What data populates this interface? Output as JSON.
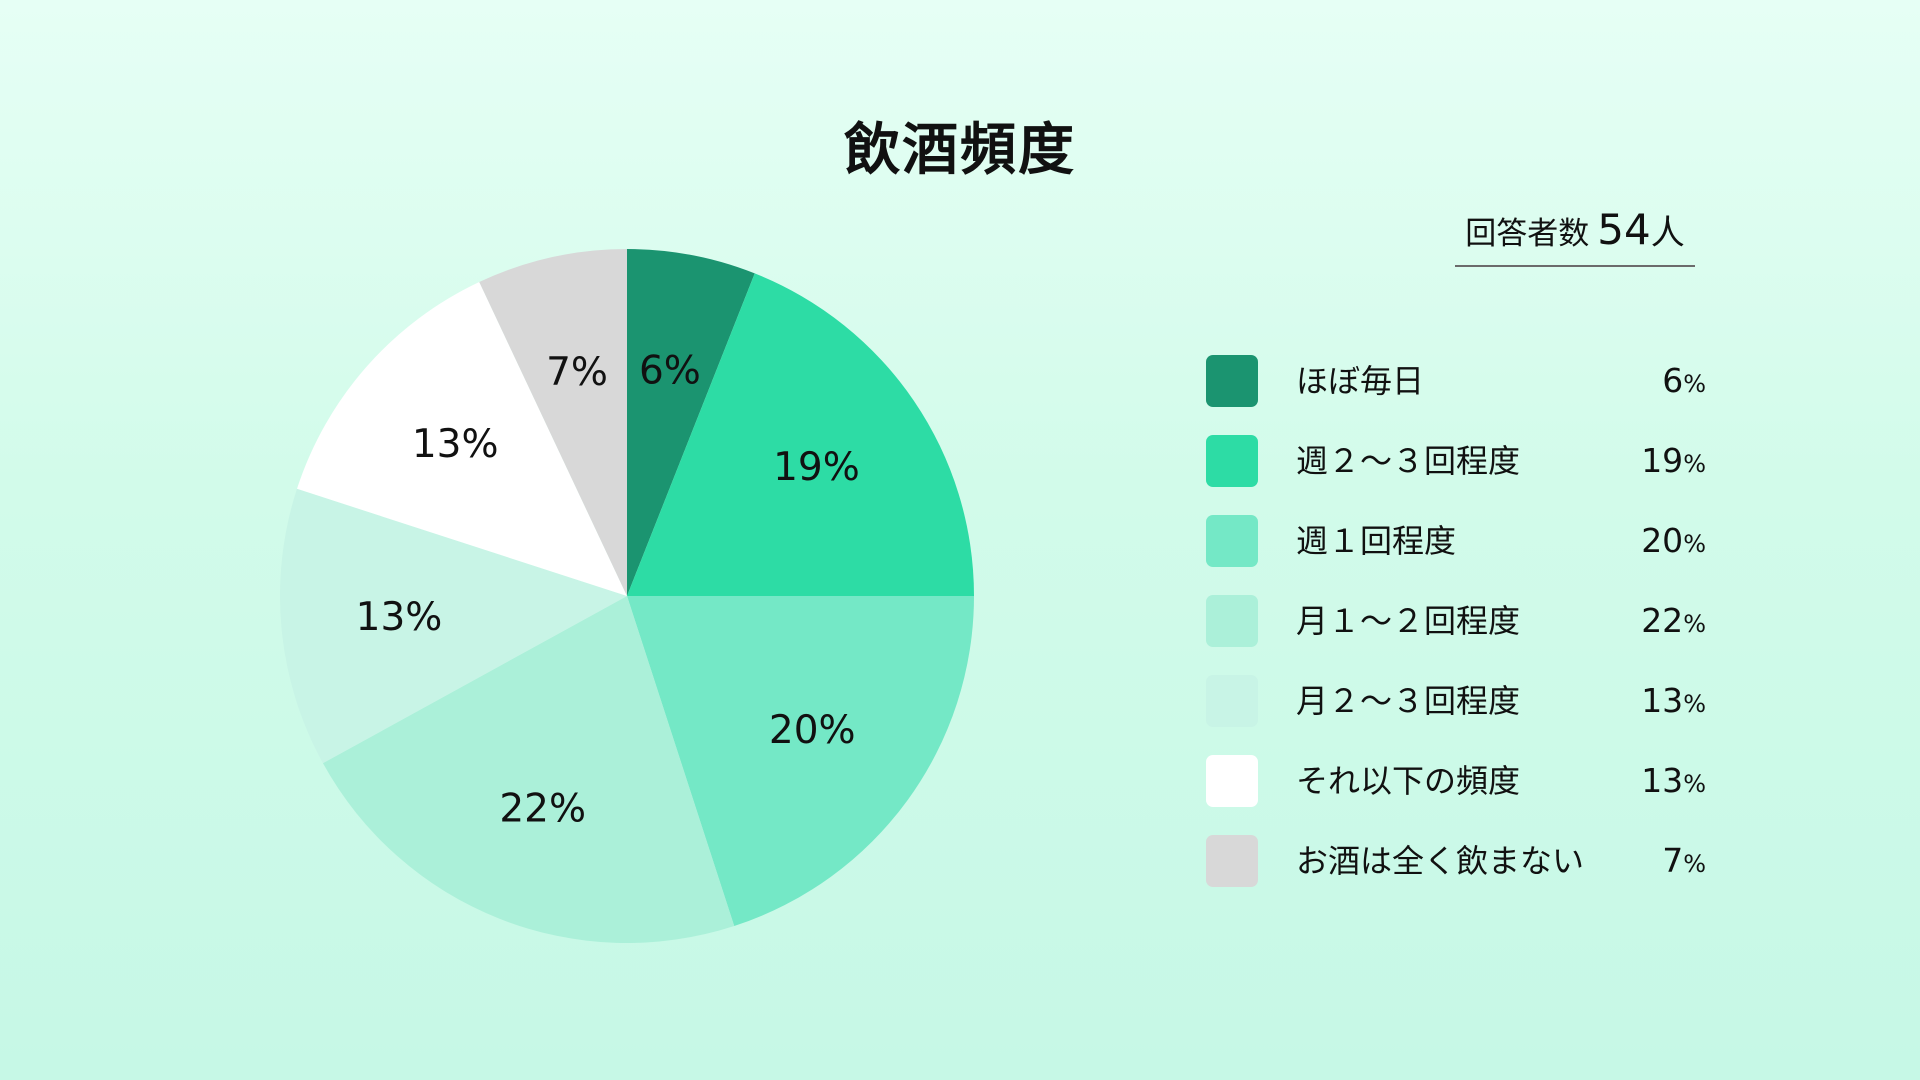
{
  "chart_data": {
    "type": "pie",
    "title": "飲酒頻度",
    "respondents": {
      "label": "回答者数",
      "value": "54",
      "unit": "人"
    },
    "unit": "%",
    "slices": [
      {
        "label": "ほぼ毎日",
        "value": 6,
        "color": "#1b9470"
      },
      {
        "label": "週２～３回程度",
        "value": 19,
        "color": "#2ddca5"
      },
      {
        "label": "週１回程度",
        "value": 20,
        "color": "#74e8c6"
      },
      {
        "label": "月１～２回程度",
        "value": 22,
        "color": "#abf0d9"
      },
      {
        "label": "月２～３回程度",
        "value": 13,
        "color": "#c8f4e6"
      },
      {
        "label": "それ以下の頻度",
        "value": 13,
        "color": "#ffffff"
      },
      {
        "label": "お酒は全く飲まない",
        "value": 7,
        "color": "#d8d8d8"
      }
    ]
  }
}
